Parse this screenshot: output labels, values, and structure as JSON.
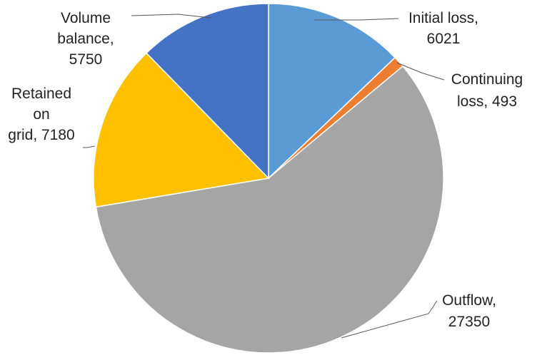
{
  "chart_data": {
    "type": "pie",
    "title": "",
    "categories": [
      "Initial loss",
      "Continuing loss",
      "Outflow",
      "Retained on grid",
      "Volume balance"
    ],
    "values": [
      6021,
      493,
      27350,
      7180,
      5750
    ],
    "colors": [
      "#5B9BD5",
      "#ED7D31",
      "#A5A5A5",
      "#FFC000",
      "#4472C4"
    ],
    "legend": "none",
    "labels": [
      [
        "Initial loss,",
        "6021"
      ],
      [
        "Continuing",
        "loss, 493"
      ],
      [
        "Outflow,",
        "27350"
      ],
      [
        "Retained",
        "on",
        "grid, 7180"
      ],
      [
        "Volume",
        "balance,",
        "5750"
      ]
    ]
  }
}
